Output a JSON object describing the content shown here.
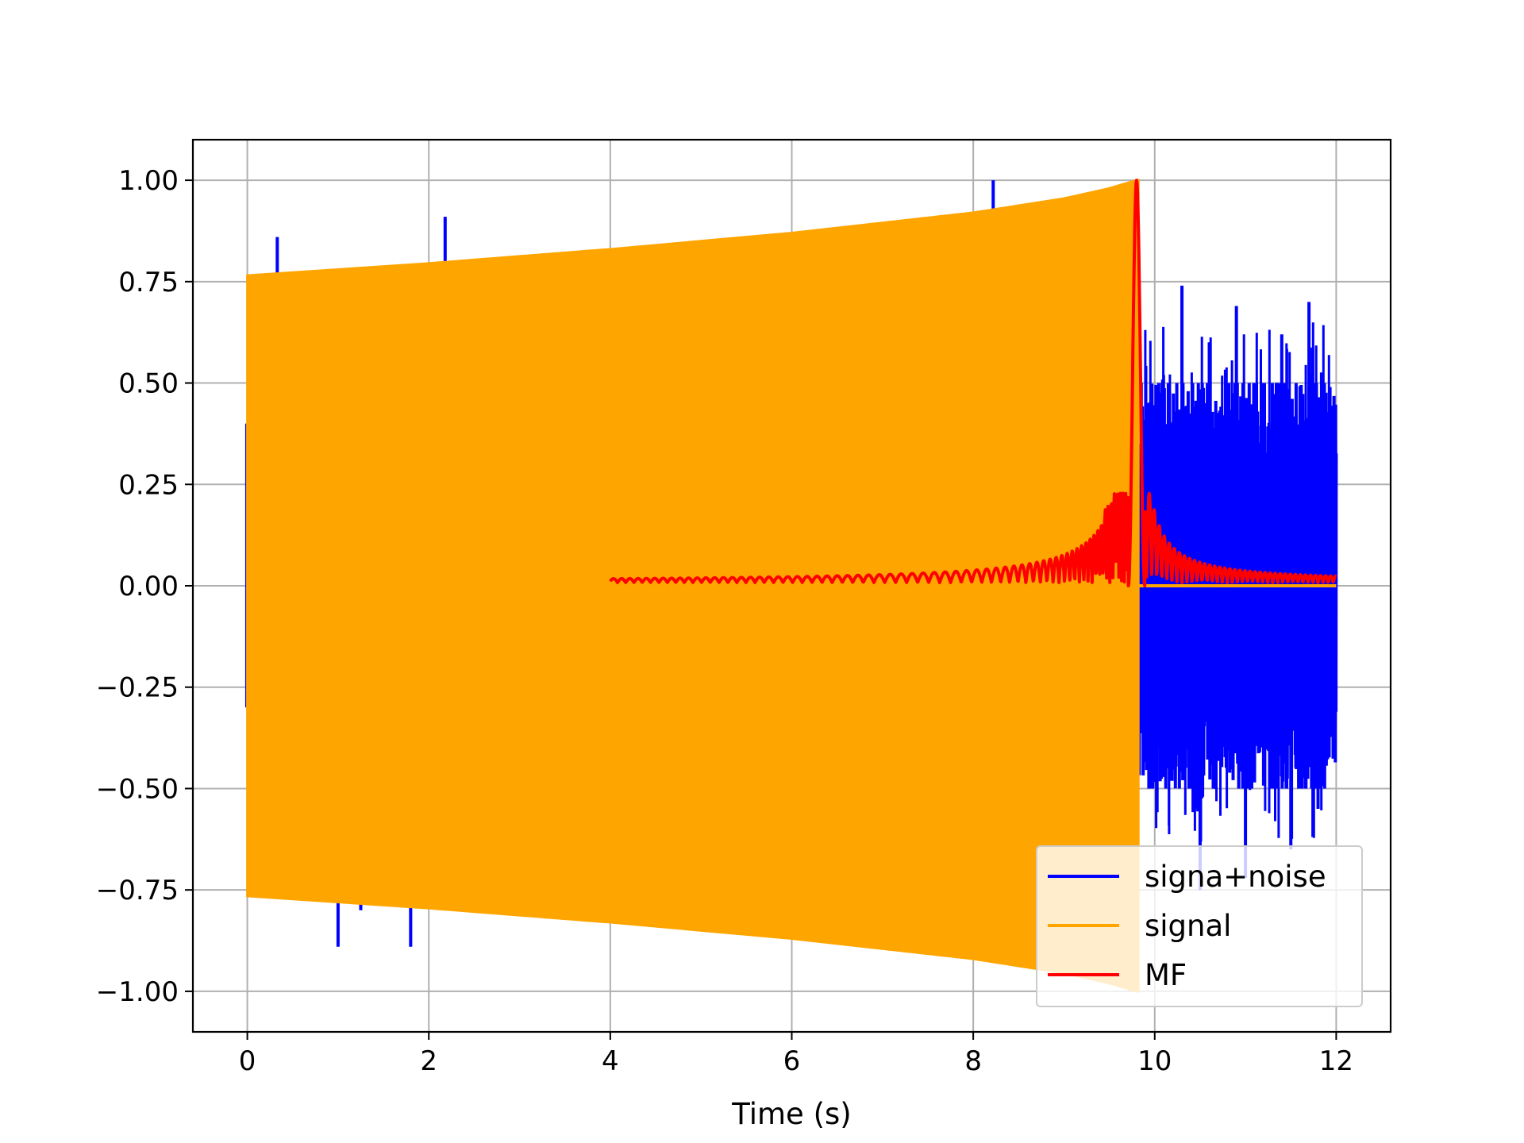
{
  "chart_data": {
    "type": "line",
    "title": "",
    "xlabel": "Time (s)",
    "ylabel": "",
    "xlim": [
      -0.6,
      12.6
    ],
    "ylim": [
      -1.1,
      1.1
    ],
    "xticks": [
      0,
      2,
      4,
      6,
      8,
      10,
      12
    ],
    "xtick_labels": [
      "0",
      "2",
      "4",
      "6",
      "8",
      "10",
      "12"
    ],
    "yticks": [
      1.0,
      0.75,
      0.5,
      0.25,
      0.0,
      -0.25,
      -0.5,
      -0.75,
      -1.0
    ],
    "ytick_labels": [
      "1.00",
      "0.75",
      "0.50",
      "0.25",
      "0.00",
      "−0.25",
      "−0.50",
      "−0.75",
      "−1.00"
    ],
    "grid": true,
    "legend_position": "lower-right",
    "series": [
      {
        "name": "signa+noise",
        "color": "#0000ff",
        "description_values": {
          "spikes_during_signal": [
            {
              "x": 0.33,
              "y": 0.86
            },
            {
              "x": 1.0,
              "y": -0.89
            },
            {
              "x": 1.25,
              "y": -0.8
            },
            {
              "x": 1.8,
              "y": -0.89
            },
            {
              "x": 2.18,
              "y": 0.91
            },
            {
              "x": 2.3,
              "y": -0.8
            },
            {
              "x": 8.22,
              "y": 1.0
            }
          ],
          "noise_region_x": [
            9.82,
            12.0
          ],
          "noise_peaks": [
            {
              "x": 10.3,
              "y": 0.74
            },
            {
              "x": 10.5,
              "y": -0.75
            },
            {
              "x": 10.9,
              "y": 0.69
            },
            {
              "x": 11.0,
              "y": -0.72
            },
            {
              "x": 11.4,
              "y": 0.62
            },
            {
              "x": 11.5,
              "y": -0.65
            },
            {
              "x": 11.7,
              "y": 0.7
            },
            {
              "x": 11.8,
              "y": -0.55
            }
          ]
        }
      },
      {
        "name": "signal",
        "color": "#ffa500",
        "envelope": {
          "x": [
            0.0,
            2.0,
            4.0,
            6.0,
            8.0,
            9.0,
            9.5,
            9.8
          ],
          "amplitude": [
            0.765,
            0.795,
            0.83,
            0.87,
            0.92,
            0.955,
            0.98,
            1.0
          ]
        },
        "end_x": 9.82,
        "after_end_value": 0.0
      },
      {
        "name": "MF",
        "color": "#ff0000",
        "start_x": 4.0,
        "end_x": 12.0,
        "peak": {
          "x": 9.8,
          "y": 1.0
        }
      }
    ]
  }
}
